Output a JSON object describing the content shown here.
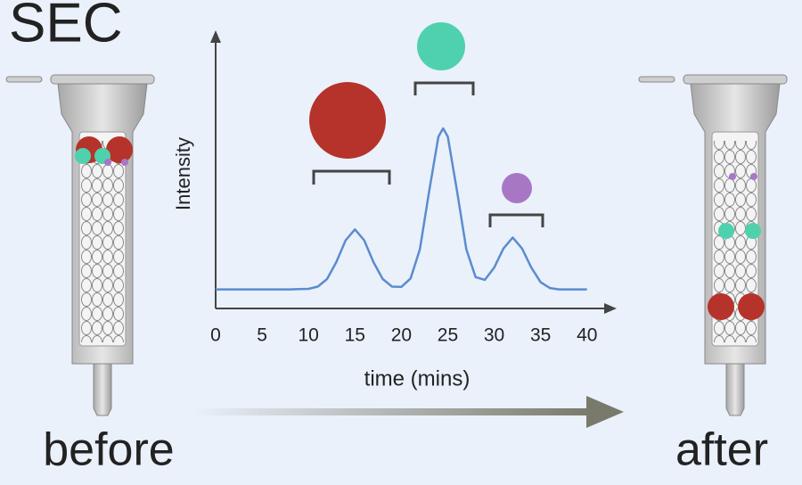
{
  "title": "SEC",
  "before_label": "before",
  "after_label": "after",
  "chart_data": {
    "type": "line",
    "xlabel": "time (mins)",
    "ylabel": "Intensity",
    "x": [
      0,
      1,
      2,
      3,
      4,
      5,
      6,
      7,
      8,
      9,
      10,
      11,
      12,
      13,
      14,
      15,
      16,
      17,
      18,
      19,
      20,
      21,
      22,
      23,
      24,
      24.5,
      25,
      26,
      27,
      28,
      29,
      30,
      31,
      32,
      33,
      34,
      35,
      36,
      37,
      38,
      39,
      40
    ],
    "series": [
      {
        "color": "#5b8ccf",
        "values": [
          0.07,
          0.07,
          0.07,
          0.07,
          0.07,
          0.07,
          0.07,
          0.07,
          0.07,
          0.071,
          0.072,
          0.08,
          0.108,
          0.17,
          0.25,
          0.29,
          0.25,
          0.17,
          0.108,
          0.08,
          0.079,
          0.11,
          0.217,
          0.43,
          0.63,
          0.66,
          0.63,
          0.43,
          0.217,
          0.115,
          0.105,
          0.15,
          0.22,
          0.26,
          0.22,
          0.15,
          0.096,
          0.075,
          0.07,
          0.07,
          0.07,
          0.07
        ]
      }
    ],
    "xlim": [
      0,
      43
    ],
    "xticks": [
      0,
      5,
      10,
      15,
      20,
      25,
      30,
      35,
      40
    ],
    "ylim": [
      0,
      1
    ]
  }
}
